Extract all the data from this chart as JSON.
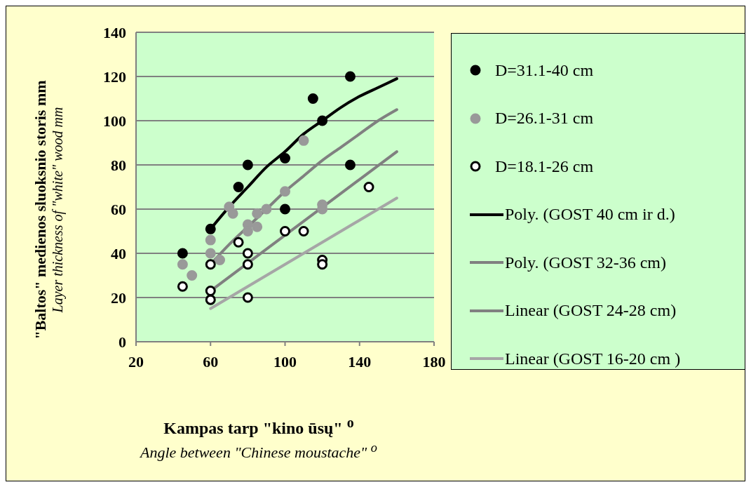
{
  "chart_data": {
    "type": "scatter",
    "xlabel": "Kampas tarp \"kino ūsų\" $^{o}$\nAngle  between  \"Chinese moustache\" $^{o}$",
    "ylabel": "\"Baltos\" medienos sluoksnio storis mm\nLayer thickness of \"white\" wood mm",
    "xlim": [
      20,
      180
    ],
    "xticks": [
      20,
      60,
      100,
      140,
      180
    ],
    "ylim": [
      0,
      140
    ],
    "yticks": [
      0,
      20,
      40,
      60,
      80,
      100,
      120,
      140
    ],
    "grid": "y",
    "legend": "right",
    "marker": "circle",
    "series": [
      {
        "name": "D=31.1-40 cm",
        "color": "#000000",
        "x": [
          45,
          60,
          75,
          80,
          100,
          100,
          115,
          120,
          135,
          135
        ],
        "values": [
          40,
          51,
          70,
          80,
          83,
          60,
          110,
          100,
          120,
          80
        ]
      },
      {
        "name": "D=26.1-31 cm",
        "color": "#999999",
        "x": [
          45,
          50,
          60,
          60,
          65,
          70,
          72,
          80,
          80,
          85,
          85,
          90,
          100,
          110,
          120,
          120
        ],
        "values": [
          35,
          30,
          46,
          40,
          37,
          61,
          58,
          53,
          50,
          58,
          52,
          60,
          68,
          91,
          62,
          60
        ]
      },
      {
        "name": "D=18.1-26 cm",
        "color": "#ffffff",
        "x": [
          45,
          60,
          60,
          60,
          75,
          80,
          80,
          80,
          100,
          110,
          120,
          120,
          145
        ],
        "values": [
          25,
          35,
          23,
          19,
          45,
          40,
          35,
          20,
          50,
          50,
          37,
          35,
          70
        ]
      },
      {
        "name": "Poly. (GOST 40 cm ir d.)",
        "type": "line",
        "marker": "none",
        "color": "#000000",
        "x": [
          60,
          70,
          80,
          90,
          100,
          110,
          120,
          130,
          140,
          150,
          160
        ],
        "values": [
          51,
          61,
          70,
          79,
          86,
          94,
          100,
          106,
          111,
          115,
          119
        ]
      },
      {
        "name": "Poly. (GOST 32-36 cm)",
        "type": "line",
        "marker": "none",
        "color": "#808080",
        "x": [
          60,
          70,
          80,
          90,
          100,
          110,
          120,
          130,
          140,
          150,
          160
        ],
        "values": [
          35,
          44,
          52,
          60,
          68,
          75,
          82,
          88,
          94,
          100,
          105
        ]
      },
      {
        "name": "Linear (GOST 24-28 cm)",
        "type": "line",
        "marker": "none",
        "color": "#808080",
        "x": [
          60,
          160
        ],
        "values": [
          23,
          86
        ]
      },
      {
        "name": "Linear (GOST 16-20 cm )",
        "type": "line",
        "marker": "none",
        "color": "#a6a6a6",
        "x": [
          60,
          160
        ],
        "values": [
          15,
          65
        ]
      }
    ]
  }
}
